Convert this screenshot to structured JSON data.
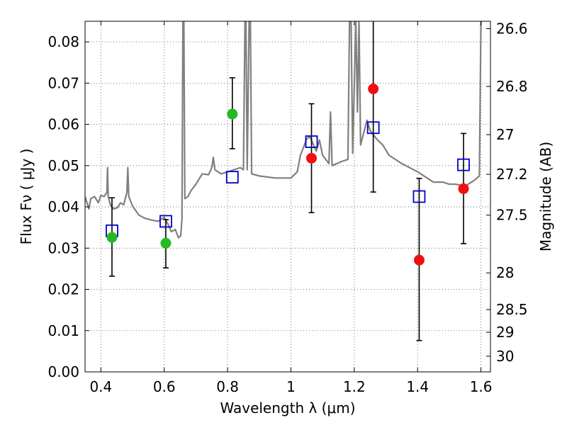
{
  "chart_data": {
    "type": "scatter",
    "title": "",
    "xlabel": "Wavelength  λ (μm)",
    "ylabel": "Flux  Fν  ( μJy )",
    "y2label": "Magnitude (AB)",
    "xlim": [
      0.35,
      1.63
    ],
    "ylim": [
      0.0,
      0.085
    ],
    "grid": true,
    "x_ticks": [
      0.4,
      0.6,
      0.8,
      1.0,
      1.2,
      1.4,
      1.6
    ],
    "x_tick_labels": [
      "0.4",
      "0.6",
      "0.8",
      "1",
      "1.2",
      "1.4",
      "1.6"
    ],
    "y_ticks": [
      0.0,
      0.01,
      0.02,
      0.03,
      0.04,
      0.05,
      0.06,
      0.07,
      0.08
    ],
    "y_tick_labels": [
      "0.00",
      "0.01",
      "0.02",
      "0.03",
      "0.04",
      "0.05",
      "0.06",
      "0.07",
      "0.08"
    ],
    "y2_tick_labels": [
      "26.6",
      "26.8",
      "27",
      "27.2",
      "27.5",
      "28",
      "28.5",
      "29",
      "30"
    ],
    "y2_tick_flux": [
      0.0832,
      0.0692,
      0.0575,
      0.0479,
      0.038,
      0.024,
      0.0151,
      0.0096,
      0.0038
    ],
    "colors": {
      "template": "#808080",
      "model_marker": "#0000cc",
      "green_marker": "#22bb22",
      "red_marker": "#ee1111",
      "error_bar": "#000000"
    },
    "series": [
      {
        "type": "line",
        "color": "#808080",
        "points": [
          [
            0.35,
            0.0425
          ],
          [
            0.362,
            0.0395
          ],
          [
            0.368,
            0.042
          ],
          [
            0.38,
            0.0425
          ],
          [
            0.392,
            0.041
          ],
          [
            0.4,
            0.0428
          ],
          [
            0.41,
            0.0425
          ],
          [
            0.419,
            0.0435
          ],
          [
            0.421,
            0.0495
          ],
          [
            0.423,
            0.0425
          ],
          [
            0.43,
            0.0405
          ],
          [
            0.44,
            0.0395
          ],
          [
            0.452,
            0.0398
          ],
          [
            0.462,
            0.041
          ],
          [
            0.472,
            0.0405
          ],
          [
            0.482,
            0.0435
          ],
          [
            0.485,
            0.0495
          ],
          [
            0.488,
            0.0425
          ],
          [
            0.5,
            0.0402
          ],
          [
            0.52,
            0.038
          ],
          [
            0.54,
            0.0372
          ],
          [
            0.56,
            0.0368
          ],
          [
            0.58,
            0.0365
          ],
          [
            0.6,
            0.0375
          ],
          [
            0.612,
            0.0358
          ],
          [
            0.622,
            0.034
          ],
          [
            0.635,
            0.0345
          ],
          [
            0.645,
            0.0325
          ],
          [
            0.652,
            0.033
          ],
          [
            0.656,
            0.037
          ],
          [
            0.659,
            0.085
          ],
          [
            0.662,
            0.085
          ],
          [
            0.665,
            0.042
          ],
          [
            0.675,
            0.0425
          ],
          [
            0.685,
            0.044
          ],
          [
            0.7,
            0.0455
          ],
          [
            0.72,
            0.048
          ],
          [
            0.74,
            0.0478
          ],
          [
            0.75,
            0.0495
          ],
          [
            0.755,
            0.052
          ],
          [
            0.76,
            0.049
          ],
          [
            0.78,
            0.048
          ],
          [
            0.8,
            0.0485
          ],
          [
            0.82,
            0.049
          ],
          [
            0.84,
            0.0495
          ],
          [
            0.85,
            0.049
          ],
          [
            0.855,
            0.085
          ],
          [
            0.858,
            0.085
          ],
          [
            0.862,
            0.049
          ],
          [
            0.868,
            0.085
          ],
          [
            0.872,
            0.085
          ],
          [
            0.876,
            0.048
          ],
          [
            0.9,
            0.0475
          ],
          [
            0.95,
            0.047
          ],
          [
            1.0,
            0.047
          ],
          [
            1.02,
            0.0485
          ],
          [
            1.03,
            0.0525
          ],
          [
            1.04,
            0.0545
          ],
          [
            1.05,
            0.0565
          ],
          [
            1.06,
            0.057
          ],
          [
            1.08,
            0.0535
          ],
          [
            1.09,
            0.0562
          ],
          [
            1.1,
            0.0525
          ],
          [
            1.12,
            0.0505
          ],
          [
            1.125,
            0.063
          ],
          [
            1.13,
            0.05
          ],
          [
            1.16,
            0.051
          ],
          [
            1.18,
            0.0515
          ],
          [
            1.185,
            0.085
          ],
          [
            1.19,
            0.085
          ],
          [
            1.195,
            0.053
          ],
          [
            1.205,
            0.085
          ],
          [
            1.21,
            0.063
          ],
          [
            1.215,
            0.085
          ],
          [
            1.22,
            0.055
          ],
          [
            1.24,
            0.061
          ],
          [
            1.25,
            0.0585
          ],
          [
            1.27,
            0.0565
          ],
          [
            1.29,
            0.055
          ],
          [
            1.31,
            0.0525
          ],
          [
            1.35,
            0.0505
          ],
          [
            1.4,
            0.0485
          ],
          [
            1.45,
            0.046
          ],
          [
            1.48,
            0.046
          ],
          [
            1.5,
            0.0455
          ],
          [
            1.52,
            0.0455
          ],
          [
            1.55,
            0.045
          ],
          [
            1.58,
            0.0465
          ],
          [
            1.595,
            0.0475
          ],
          [
            1.6,
            0.085
          ]
        ]
      },
      {
        "type": "errorbar",
        "marker": "open-square",
        "color": "#0000cc",
        "x": [
          0.435,
          0.605,
          0.815,
          1.065,
          1.26,
          1.405,
          1.545
        ],
        "y": [
          0.0342,
          0.0365,
          0.0472,
          0.0558,
          0.0592,
          0.0425,
          0.0502
        ],
        "yerr_low": [
          0.0232,
          0.0252,
          0.0541,
          0.0386,
          0.0436,
          0.0076,
          0.0311
        ],
        "yerr_high": [
          0.0422,
          0.0369,
          0.0713,
          0.065,
          0.085,
          0.0469,
          0.0578
        ]
      },
      {
        "type": "scatter",
        "marker": "filled-circle",
        "color": "#22bb22",
        "x": [
          0.435,
          0.605,
          0.815
        ],
        "y": [
          0.0326,
          0.0312,
          0.0625
        ]
      },
      {
        "type": "scatter",
        "marker": "filled-circle",
        "color": "#ee1111",
        "x": [
          1.065,
          1.26,
          1.405,
          1.545
        ],
        "y": [
          0.0518,
          0.0686,
          0.0271,
          0.0444
        ]
      }
    ]
  }
}
